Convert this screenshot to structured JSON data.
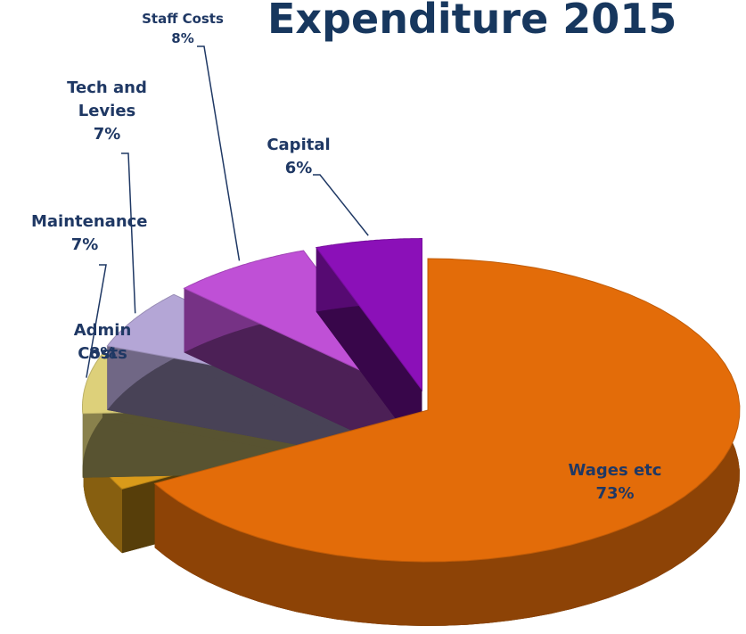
{
  "chart_data": {
    "type": "pie3d",
    "title": "Expenditure 2015",
    "categories": [
      "Wages etc",
      "Admin Costs",
      "Maintenance",
      "Tech and Levies",
      "Staff Costs",
      "Capital"
    ],
    "values": [
      73,
      8,
      7,
      7,
      8,
      6
    ],
    "value_labels": [
      "73%",
      "8%",
      "7%",
      "7%",
      "8%",
      "6%"
    ],
    "colors": [
      "#e36c09",
      "#d99a1a",
      "#ddd07a",
      "#b4a6d6",
      "#bf50d6",
      "#8b10b8"
    ]
  }
}
